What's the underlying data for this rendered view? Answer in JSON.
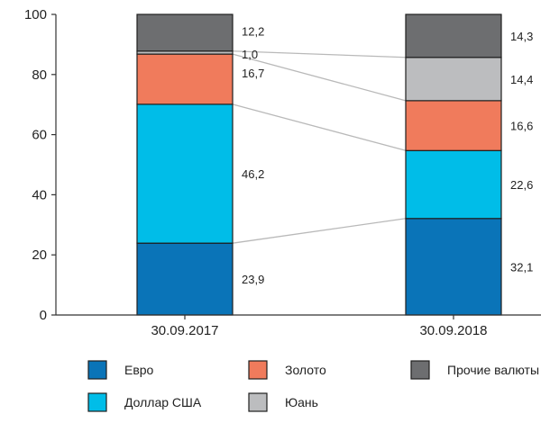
{
  "chart_data": {
    "type": "bar",
    "stacked": true,
    "categories": [
      "30.09.2017",
      "30.09.2018"
    ],
    "ylim": [
      0,
      100
    ],
    "yticks": [
      0,
      20,
      40,
      60,
      80,
      100
    ],
    "grid": false,
    "legend_position": "bottom",
    "series": [
      {
        "name": "Евро",
        "values": [
          23.9,
          32.1
        ],
        "labels": [
          "23,9",
          "32,1"
        ],
        "color": "#0a74b8"
      },
      {
        "name": "Доллар США",
        "values": [
          46.2,
          22.6
        ],
        "labels": [
          "46,2",
          "22,6"
        ],
        "color": "#00bde8"
      },
      {
        "name": "Золото",
        "values": [
          16.7,
          16.6
        ],
        "labels": [
          "16,7",
          "16,6"
        ],
        "color": "#f07b5c"
      },
      {
        "name": "Юань",
        "values": [
          1.0,
          14.4
        ],
        "labels": [
          "1,0",
          "14,4"
        ],
        "color": "#bcbdbf"
      },
      {
        "name": "Прочие валюты",
        "values": [
          12.2,
          14.3
        ],
        "labels": [
          "12,2",
          "14,3"
        ],
        "color": "#6d6e70"
      }
    ],
    "legend_order": [
      0,
      2,
      4,
      1,
      3
    ],
    "connector_color": "#b9b9b9",
    "axis_color": "#333333",
    "outline_color": "#1e1e1e"
  }
}
